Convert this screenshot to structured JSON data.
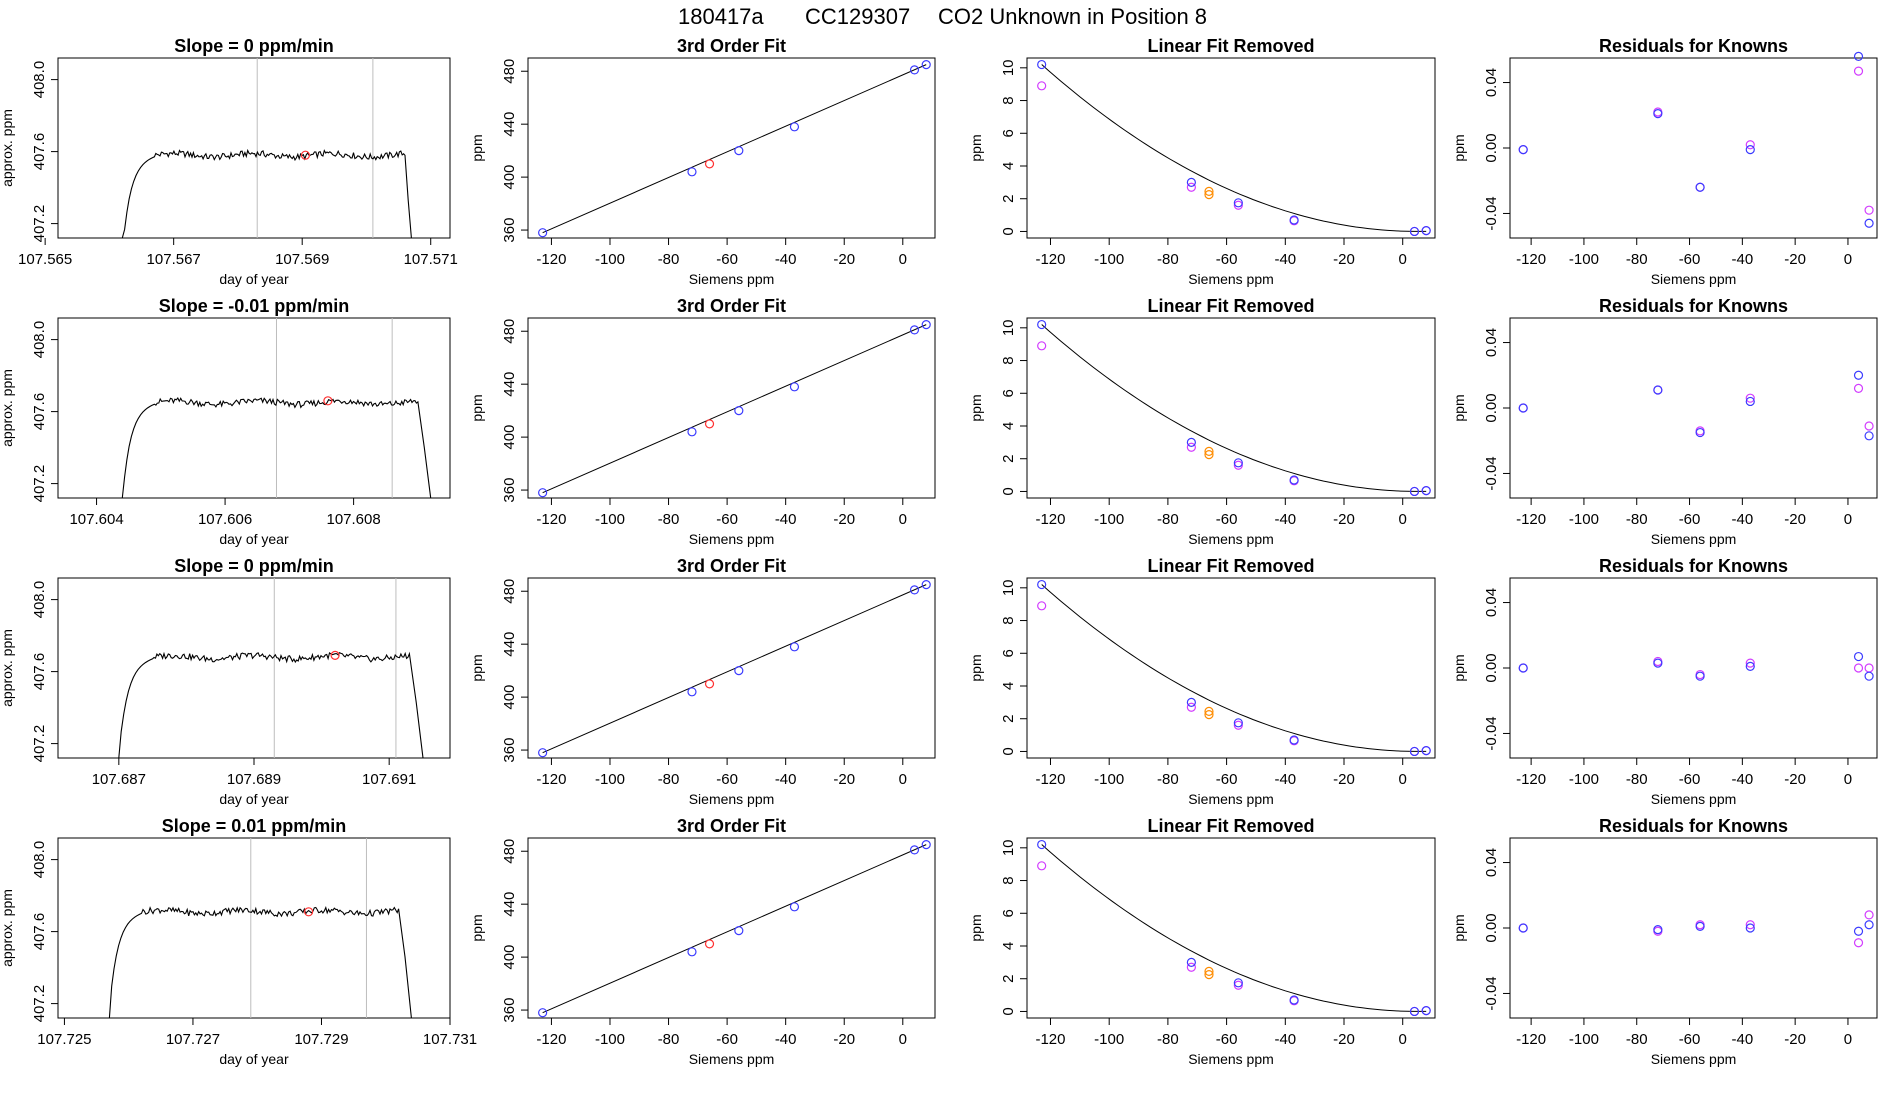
{
  "header": {
    "run_id": "180417a",
    "tank_id": "CC129307",
    "description": "CO2 Unknown in Position  8"
  },
  "colors": {
    "trace": "#000000",
    "marker": "#ff3030",
    "gridline": "#bebebe",
    "known_a": "#3b3bff",
    "known_b": "#d23cff",
    "unknown_fit": "#ff8c00"
  },
  "common": {
    "time_xlabel": "day of year",
    "time_ylabel": "approx. ppm",
    "siemens_xlabel": "Siemens ppm",
    "ppm_ylabel": "ppm",
    "fit_title": "3rd Order Fit",
    "removed_title": "Linear Fit Removed",
    "resid_title": "Residuals for Knowns",
    "siemens_ticks": [
      "-120",
      "-100",
      "-80",
      "-60",
      "-40",
      "-20",
      "0"
    ],
    "fit_yticks": [
      "360",
      "400",
      "440",
      "480"
    ],
    "removed_yticks": [
      "0",
      "2",
      "4",
      "6",
      "8",
      "10"
    ],
    "resid_yticks": [
      "-0.04",
      "0.00",
      "0.04"
    ],
    "time_yticks": [
      "407.2",
      "407.6",
      "408.0"
    ]
  },
  "chart_data": [
    {
      "type": "line",
      "panel": "time",
      "row": 1,
      "title": "Slope =  0  ppm/min",
      "xlabel": "day of year",
      "ylabel": "approx. ppm",
      "xlim": [
        107.5652,
        107.5713
      ],
      "ylim": [
        407.12,
        408.12
      ],
      "xticks": [
        "107.565",
        "107.567",
        "107.569",
        "107.571"
      ],
      "xtick_values": [
        107.565,
        107.567,
        107.569,
        107.571
      ],
      "yticks": [
        407.2,
        407.6,
        408.0
      ],
      "trace": {
        "start": 107.5662,
        "rise_end": 107.5667,
        "end": 107.5707,
        "fall_start": 107.5706,
        "level": 407.58,
        "base": 407.1
      },
      "vlines": [
        107.5683,
        107.5701
      ],
      "marker": [
        107.56905,
        407.58
      ]
    },
    {
      "type": "line",
      "panel": "time",
      "row": 2,
      "title": "Slope =  -0.01  ppm/min",
      "xlabel": "day of year",
      "ylabel": "approx. ppm",
      "xlim": [
        107.6034,
        107.6095
      ],
      "ylim": [
        407.12,
        408.12
      ],
      "xticks": [
        "107.604",
        "107.606",
        "107.608"
      ],
      "xtick_values": [
        107.604,
        107.606,
        107.608
      ],
      "yticks": [
        407.2,
        407.6,
        408.0
      ],
      "trace": {
        "start": 107.6044,
        "rise_end": 107.6049,
        "end": 107.6092,
        "fall_start": 107.609,
        "level": 407.65,
        "base": 407.1
      },
      "vlines": [
        107.6068,
        107.6086
      ],
      "marker": [
        107.6076,
        407.66
      ]
    },
    {
      "type": "line",
      "panel": "time",
      "row": 3,
      "title": "Slope =  0  ppm/min",
      "xlabel": "day of year",
      "ylabel": "approx. ppm",
      "xlim": [
        107.6861,
        107.6919
      ],
      "ylim": [
        407.12,
        408.12
      ],
      "xticks": [
        "107.687",
        "107.689",
        "107.691"
      ],
      "xtick_values": [
        107.687,
        107.689,
        107.691
      ],
      "yticks": [
        407.2,
        407.6,
        408.0
      ],
      "trace": {
        "start": 107.687,
        "rise_end": 107.6875,
        "end": 107.6915,
        "fall_start": 107.6913,
        "level": 407.68,
        "base": 407.1
      },
      "vlines": [
        107.6893,
        107.6911
      ],
      "marker": [
        107.6902,
        407.69
      ]
    },
    {
      "type": "line",
      "panel": "time",
      "row": 4,
      "title": "Slope =  0.01  ppm/min",
      "xlabel": "day of year",
      "ylabel": "approx. ppm",
      "xlim": [
        107.7249,
        107.731
      ],
      "ylim": [
        407.12,
        408.12
      ],
      "xticks": [
        "107.725",
        "107.727",
        "107.729",
        "107.731"
      ],
      "xtick_values": [
        107.725,
        107.727,
        107.729,
        107.731
      ],
      "yticks": [
        407.2,
        407.6,
        408.0
      ],
      "trace": {
        "start": 107.7257,
        "rise_end": 107.7262,
        "end": 107.7304,
        "fall_start": 107.7302,
        "level": 407.71,
        "base": 407.1
      },
      "vlines": [
        107.7279,
        107.7297
      ],
      "marker": [
        107.7288,
        407.71
      ]
    },
    {
      "type": "scatter",
      "panel": "fit",
      "row": 1,
      "title": "3rd Order Fit",
      "xlabel": "Siemens ppm",
      "ylabel": "ppm",
      "xlim": [
        -128,
        11
      ],
      "ylim": [
        354,
        490
      ],
      "line": [
        [
          -123,
          358
        ],
        [
          8,
          485
        ]
      ],
      "knowns": [
        [
          -123,
          358
        ],
        [
          -72,
          404
        ],
        [
          -56,
          420
        ],
        [
          -37,
          438
        ],
        [
          4,
          481
        ],
        [
          8,
          485
        ]
      ],
      "unknown": [
        -66,
        410
      ]
    },
    {
      "type": "scatter",
      "panel": "fit",
      "row": 2,
      "title": "3rd Order Fit",
      "xlabel": "Siemens ppm",
      "ylabel": "ppm",
      "xlim": [
        -128,
        11
      ],
      "ylim": [
        354,
        490
      ],
      "line": [
        [
          -123,
          358
        ],
        [
          8,
          485
        ]
      ],
      "knowns": [
        [
          -123,
          358
        ],
        [
          -72,
          404
        ],
        [
          -56,
          420
        ],
        [
          -37,
          438
        ],
        [
          4,
          481
        ],
        [
          8,
          485
        ]
      ],
      "unknown": [
        -66,
        410
      ]
    },
    {
      "type": "scatter",
      "panel": "fit",
      "row": 3,
      "title": "3rd Order Fit",
      "xlabel": "Siemens ppm",
      "ylabel": "ppm",
      "xlim": [
        -128,
        11
      ],
      "ylim": [
        354,
        490
      ],
      "line": [
        [
          -123,
          358
        ],
        [
          8,
          485
        ]
      ],
      "knowns": [
        [
          -123,
          358
        ],
        [
          -72,
          404
        ],
        [
          -56,
          420
        ],
        [
          -37,
          438
        ],
        [
          4,
          481
        ],
        [
          8,
          485
        ]
      ],
      "unknown": [
        -66,
        410
      ]
    },
    {
      "type": "scatter",
      "panel": "fit",
      "row": 4,
      "title": "3rd Order Fit",
      "xlabel": "Siemens ppm",
      "ylabel": "ppm",
      "xlim": [
        -128,
        11
      ],
      "ylim": [
        354,
        490
      ],
      "line": [
        [
          -123,
          358
        ],
        [
          8,
          485
        ]
      ],
      "knowns": [
        [
          -123,
          358
        ],
        [
          -72,
          404
        ],
        [
          -56,
          420
        ],
        [
          -37,
          438
        ],
        [
          4,
          481
        ],
        [
          8,
          485
        ]
      ],
      "unknown": [
        -66,
        410
      ]
    },
    {
      "type": "scatter",
      "panel": "removed",
      "row": 1,
      "title": "Linear Fit Removed",
      "xlabel": "Siemens ppm",
      "ylabel": "ppm",
      "xlim": [
        -128,
        11
      ],
      "ylim": [
        -0.4,
        10.6
      ],
      "curve": {
        "x_min": -123,
        "x_max": 8,
        "vertex": 5,
        "value_at_min": 10.2
      },
      "knowns_a": [
        [
          -123,
          10.2
        ],
        [
          -72,
          3.0
        ],
        [
          -56,
          1.75
        ],
        [
          -37,
          0.7
        ],
        [
          4,
          0
        ],
        [
          8,
          0.05
        ]
      ],
      "knowns_b": [
        [
          -123,
          8.9
        ],
        [
          -72,
          2.7
        ],
        [
          -56,
          1.6
        ],
        [
          -37,
          0.65
        ],
        [
          4,
          0
        ],
        [
          8,
          0.05
        ]
      ],
      "unknown": [
        [
          -66,
          2.45
        ],
        [
          -66,
          2.25
        ]
      ]
    },
    {
      "type": "scatter",
      "panel": "removed",
      "row": 2,
      "title": "Linear Fit Removed",
      "xlabel": "Siemens ppm",
      "ylabel": "ppm",
      "xlim": [
        -128,
        11
      ],
      "ylim": [
        -0.4,
        10.6
      ],
      "curve": {
        "x_min": -123,
        "x_max": 8,
        "vertex": 5,
        "value_at_min": 10.2
      },
      "knowns_a": [
        [
          -123,
          10.2
        ],
        [
          -72,
          3.0
        ],
        [
          -56,
          1.75
        ],
        [
          -37,
          0.7
        ],
        [
          4,
          0
        ],
        [
          8,
          0.05
        ]
      ],
      "knowns_b": [
        [
          -123,
          8.9
        ],
        [
          -72,
          2.7
        ],
        [
          -56,
          1.6
        ],
        [
          -37,
          0.65
        ],
        [
          4,
          0
        ],
        [
          8,
          0.05
        ]
      ],
      "unknown": [
        [
          -66,
          2.45
        ],
        [
          -66,
          2.25
        ]
      ]
    },
    {
      "type": "scatter",
      "panel": "removed",
      "row": 3,
      "title": "Linear Fit Removed",
      "xlabel": "Siemens ppm",
      "ylabel": "ppm",
      "xlim": [
        -128,
        11
      ],
      "ylim": [
        -0.4,
        10.6
      ],
      "curve": {
        "x_min": -123,
        "x_max": 8,
        "vertex": 5,
        "value_at_min": 10.2
      },
      "knowns_a": [
        [
          -123,
          10.2
        ],
        [
          -72,
          3.0
        ],
        [
          -56,
          1.75
        ],
        [
          -37,
          0.7
        ],
        [
          4,
          0
        ],
        [
          8,
          0.05
        ]
      ],
      "knowns_b": [
        [
          -123,
          8.9
        ],
        [
          -72,
          2.7
        ],
        [
          -56,
          1.6
        ],
        [
          -37,
          0.65
        ],
        [
          4,
          0
        ],
        [
          8,
          0.05
        ]
      ],
      "unknown": [
        [
          -66,
          2.45
        ],
        [
          -66,
          2.25
        ]
      ]
    },
    {
      "type": "scatter",
      "panel": "removed",
      "row": 4,
      "title": "Linear Fit Removed",
      "xlabel": "Siemens ppm",
      "ylabel": "ppm",
      "xlim": [
        -128,
        11
      ],
      "ylim": [
        -0.4,
        10.6
      ],
      "curve": {
        "x_min": -123,
        "x_max": 8,
        "vertex": 5,
        "value_at_min": 10.2
      },
      "knowns_a": [
        [
          -123,
          10.2
        ],
        [
          -72,
          3.0
        ],
        [
          -56,
          1.75
        ],
        [
          -37,
          0.7
        ],
        [
          4,
          0
        ],
        [
          8,
          0.05
        ]
      ],
      "knowns_b": [
        [
          -123,
          8.9
        ],
        [
          -72,
          2.7
        ],
        [
          -56,
          1.6
        ],
        [
          -37,
          0.65
        ],
        [
          4,
          0
        ],
        [
          8,
          0.05
        ]
      ],
      "unknown": [
        [
          -66,
          2.45
        ],
        [
          -66,
          2.25
        ]
      ]
    },
    {
      "type": "scatter",
      "panel": "resid",
      "row": 1,
      "title": "Residuals for Knowns",
      "xlabel": "Siemens ppm",
      "ylabel": "ppm",
      "xlim": [
        -128,
        11
      ],
      "ylim": [
        -0.055,
        0.055
      ],
      "knowns_a": [
        [
          -123,
          -0.001
        ],
        [
          -72,
          0.021
        ],
        [
          -56,
          -0.024
        ],
        [
          -37,
          -0.001
        ],
        [
          4,
          0.056
        ],
        [
          8,
          -0.046
        ]
      ],
      "knowns_b": [
        [
          -123,
          -0.001
        ],
        [
          -72,
          0.022
        ],
        [
          -56,
          -0.024
        ],
        [
          -37,
          0.002
        ],
        [
          4,
          0.047
        ],
        [
          8,
          -0.038
        ]
      ]
    },
    {
      "type": "scatter",
      "panel": "resid",
      "row": 2,
      "title": "Residuals for Knowns",
      "xlabel": "Siemens ppm",
      "ylabel": "ppm",
      "xlim": [
        -128,
        11
      ],
      "ylim": [
        -0.055,
        0.055
      ],
      "knowns_a": [
        [
          -123,
          0.0
        ],
        [
          -72,
          0.011
        ],
        [
          -56,
          -0.015
        ],
        [
          -37,
          0.004
        ],
        [
          4,
          0.02
        ],
        [
          8,
          -0.017
        ]
      ],
      "knowns_b": [
        [
          -123,
          0.0
        ],
        [
          -72,
          0.011
        ],
        [
          -56,
          -0.014
        ],
        [
          -37,
          0.006
        ],
        [
          4,
          0.012
        ],
        [
          8,
          -0.011
        ]
      ]
    },
    {
      "type": "scatter",
      "panel": "resid",
      "row": 3,
      "title": "Residuals for Knowns",
      "xlabel": "Siemens ppm",
      "ylabel": "ppm",
      "xlim": [
        -128,
        11
      ],
      "ylim": [
        -0.055,
        0.055
      ],
      "knowns_a": [
        [
          -123,
          0.0
        ],
        [
          -72,
          0.003
        ],
        [
          -56,
          -0.005
        ],
        [
          -37,
          0.001
        ],
        [
          4,
          0.007
        ],
        [
          8,
          -0.005
        ]
      ],
      "knowns_b": [
        [
          -123,
          0.0
        ],
        [
          -72,
          0.004
        ],
        [
          -56,
          -0.004
        ],
        [
          -37,
          0.003
        ],
        [
          4,
          0.0
        ],
        [
          8,
          0.0
        ]
      ]
    },
    {
      "type": "scatter",
      "panel": "resid",
      "row": 4,
      "title": "Residuals for Knowns",
      "xlabel": "Siemens ppm",
      "ylabel": "ppm",
      "xlim": [
        -128,
        11
      ],
      "ylim": [
        -0.055,
        0.055
      ],
      "knowns_a": [
        [
          -123,
          0.0
        ],
        [
          -72,
          -0.001
        ],
        [
          -56,
          0.001
        ],
        [
          -37,
          0.0
        ],
        [
          4,
          -0.002
        ],
        [
          8,
          0.002
        ]
      ],
      "knowns_b": [
        [
          -123,
          0.0
        ],
        [
          -72,
          -0.002
        ],
        [
          -56,
          0.002
        ],
        [
          -37,
          0.002
        ],
        [
          4,
          -0.009
        ],
        [
          8,
          0.008
        ]
      ]
    }
  ]
}
